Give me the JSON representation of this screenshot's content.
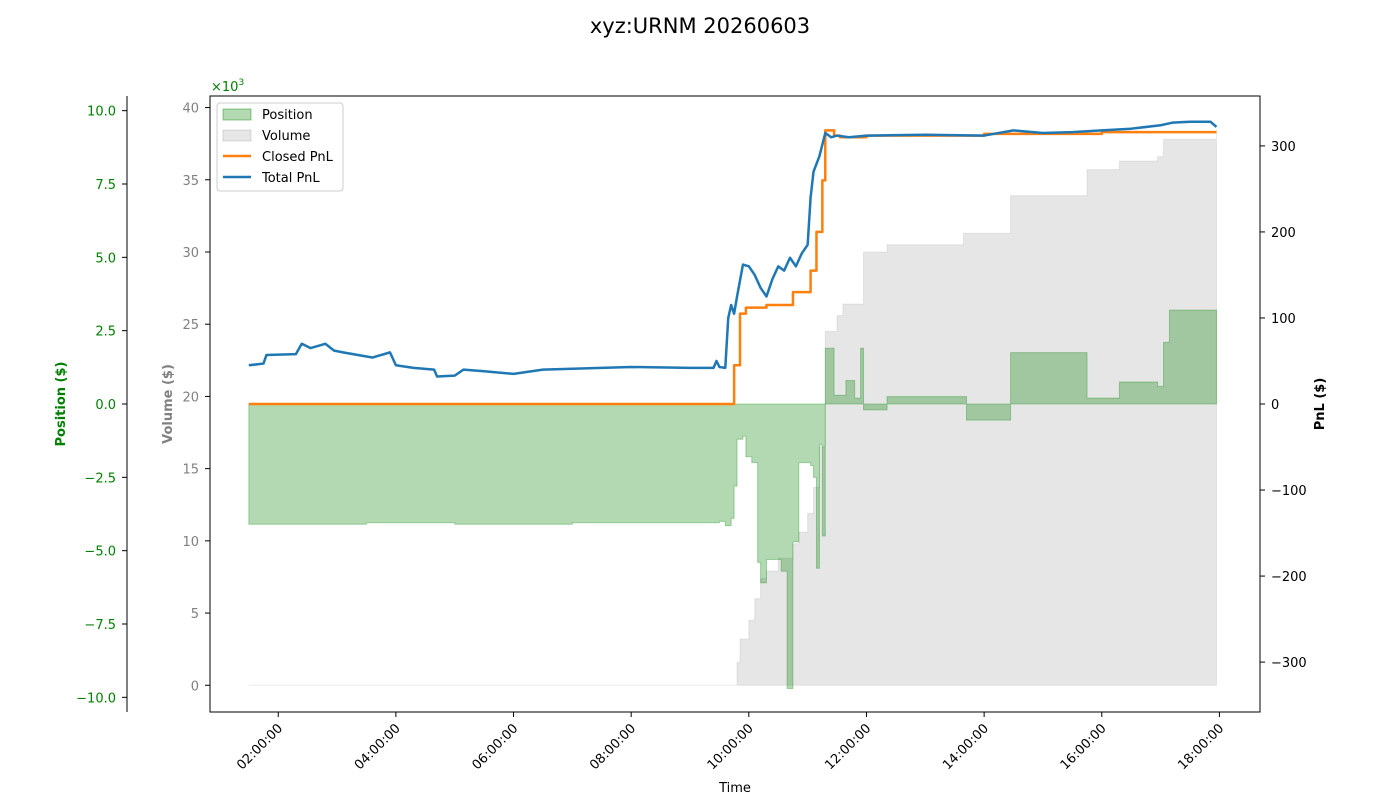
{
  "colors": {
    "position": "#008000",
    "volume": "#808080",
    "closed_pnl": "#ff7f0e",
    "total_pnl": "#1f77b4"
  },
  "chart_data": {
    "type": "line",
    "title": "xyz:URNM 20260603",
    "xlabel": "Time",
    "x_ticks": [
      "02:00:00",
      "04:00:00",
      "06:00:00",
      "08:00:00",
      "10:00:00",
      "12:00:00",
      "14:00:00",
      "16:00:00",
      "18:00:00"
    ],
    "x_range_hours": [
      1.5,
      17.95
    ],
    "axes": {
      "position": {
        "label": "Position ($)",
        "ylim": [
          -10.5,
          10.5
        ],
        "ticks": [
          "10.0",
          "7.5",
          "5.0",
          "2.5",
          "0.0",
          "−2.5",
          "−5.0",
          "−7.5",
          "−10.0"
        ],
        "tick_values": [
          10,
          7.5,
          5,
          2.5,
          0,
          -2.5,
          -5,
          -7.5,
          -10
        ],
        "offset_label": "×10",
        "offset_exp": "3"
      },
      "volume": {
        "label": "Volume ($)",
        "ylim": [
          -1.85,
          40.8
        ],
        "ticks": [
          "40",
          "35",
          "30",
          "25",
          "20",
          "15",
          "10",
          "5",
          "0"
        ],
        "tick_values": [
          40,
          35,
          30,
          25,
          20,
          15,
          10,
          5,
          0
        ],
        "unit": "x10^3"
      },
      "pnl": {
        "label": "PnL ($)",
        "ylim": [
          -358,
          358
        ],
        "ticks": [
          "300",
          "200",
          "100",
          "0",
          "−100",
          "−200",
          "−300"
        ],
        "tick_values": [
          300,
          200,
          100,
          0,
          -100,
          -200,
          -300
        ]
      }
    },
    "legend": {
      "placement": "upper-left",
      "entries": [
        "Position",
        "Volume",
        "Closed PnL",
        "Total PnL"
      ]
    },
    "series": [
      {
        "name": "Position",
        "axis": "position",
        "kind": "step-area",
        "points": [
          [
            1.5,
            -4.1
          ],
          [
            3.5,
            -4.05
          ],
          [
            5.0,
            -4.1
          ],
          [
            7.0,
            -4.05
          ],
          [
            9.5,
            -4.0
          ],
          [
            9.6,
            -4.15
          ],
          [
            9.7,
            -3.9
          ],
          [
            9.75,
            -2.8
          ],
          [
            9.8,
            -1.2
          ],
          [
            9.9,
            -1.1
          ],
          [
            9.95,
            -1.8
          ],
          [
            10.05,
            -2.0
          ],
          [
            10.15,
            -5.4
          ],
          [
            10.2,
            -6.1
          ],
          [
            10.3,
            -5.3
          ],
          [
            10.55,
            -5.7
          ],
          [
            10.65,
            -9.7
          ],
          [
            10.75,
            -4.7
          ],
          [
            10.85,
            -2.0
          ],
          [
            11.05,
            -2.1
          ],
          [
            11.1,
            -2.5
          ],
          [
            11.15,
            -5.6
          ],
          [
            11.2,
            -1.4
          ],
          [
            11.25,
            -4.5
          ],
          [
            11.3,
            1.9
          ],
          [
            11.45,
            0.3
          ],
          [
            11.55,
            0.3
          ],
          [
            11.65,
            0.8
          ],
          [
            11.8,
            0.2
          ],
          [
            11.9,
            1.9
          ],
          [
            11.95,
            -0.2
          ],
          [
            12.35,
            0.25
          ],
          [
            13.7,
            -0.55
          ],
          [
            14.45,
            1.75
          ],
          [
            15.75,
            0.2
          ],
          [
            16.3,
            0.75
          ],
          [
            16.95,
            0.6
          ],
          [
            17.05,
            2.1
          ],
          [
            17.15,
            3.2
          ],
          [
            17.95,
            3.2
          ]
        ]
      },
      {
        "name": "Volume",
        "axis": "volume",
        "kind": "step-area",
        "points": [
          [
            1.5,
            0
          ],
          [
            9.7,
            0
          ],
          [
            9.8,
            1.6
          ],
          [
            9.85,
            3.2
          ],
          [
            10.0,
            4.5
          ],
          [
            10.1,
            6.0
          ],
          [
            10.2,
            7.4
          ],
          [
            10.3,
            7.9
          ],
          [
            10.5,
            8.8
          ],
          [
            10.75,
            9.8
          ],
          [
            10.85,
            10.6
          ],
          [
            11.0,
            11.9
          ],
          [
            11.1,
            13.7
          ],
          [
            11.2,
            16.5
          ],
          [
            11.3,
            24.5
          ],
          [
            11.5,
            25.6
          ],
          [
            11.6,
            26.4
          ],
          [
            11.95,
            30.0
          ],
          [
            12.35,
            30.5
          ],
          [
            13.65,
            31.3
          ],
          [
            14.45,
            33.9
          ],
          [
            15.75,
            35.7
          ],
          [
            16.3,
            36.3
          ],
          [
            16.95,
            36.6
          ],
          [
            17.05,
            37.8
          ],
          [
            17.95,
            38.5
          ]
        ]
      },
      {
        "name": "Closed PnL",
        "axis": "pnl",
        "kind": "step-line",
        "points": [
          [
            1.5,
            0
          ],
          [
            9.7,
            0
          ],
          [
            9.75,
            45
          ],
          [
            9.85,
            105
          ],
          [
            9.95,
            112
          ],
          [
            10.3,
            115
          ],
          [
            10.75,
            130
          ],
          [
            11.05,
            155
          ],
          [
            11.15,
            200
          ],
          [
            11.25,
            260
          ],
          [
            11.3,
            318
          ],
          [
            11.45,
            312
          ],
          [
            11.55,
            310
          ],
          [
            12.0,
            312
          ],
          [
            14.0,
            314
          ],
          [
            16.0,
            316
          ],
          [
            17.95,
            316
          ]
        ]
      },
      {
        "name": "Total PnL",
        "axis": "pnl",
        "kind": "line",
        "points": [
          [
            1.5,
            45
          ],
          [
            1.75,
            47
          ],
          [
            1.8,
            57
          ],
          [
            2.3,
            58
          ],
          [
            2.4,
            70
          ],
          [
            2.55,
            65
          ],
          [
            2.8,
            70
          ],
          [
            2.95,
            62
          ],
          [
            3.1,
            60
          ],
          [
            3.6,
            54
          ],
          [
            3.9,
            60
          ],
          [
            4.0,
            45
          ],
          [
            4.3,
            42
          ],
          [
            4.65,
            40
          ],
          [
            4.7,
            32
          ],
          [
            5.0,
            33
          ],
          [
            5.15,
            40
          ],
          [
            5.5,
            38
          ],
          [
            6.0,
            35
          ],
          [
            6.5,
            40
          ],
          [
            7.0,
            41
          ],
          [
            8.0,
            43
          ],
          [
            9.0,
            42
          ],
          [
            9.4,
            42
          ],
          [
            9.45,
            50
          ],
          [
            9.5,
            43
          ],
          [
            9.6,
            42
          ],
          [
            9.65,
            100
          ],
          [
            9.7,
            115
          ],
          [
            9.75,
            105
          ],
          [
            9.8,
            125
          ],
          [
            9.9,
            162
          ],
          [
            10.0,
            160
          ],
          [
            10.1,
            150
          ],
          [
            10.2,
            135
          ],
          [
            10.3,
            125
          ],
          [
            10.4,
            145
          ],
          [
            10.5,
            160
          ],
          [
            10.6,
            155
          ],
          [
            10.7,
            170
          ],
          [
            10.8,
            160
          ],
          [
            10.9,
            175
          ],
          [
            11.0,
            185
          ],
          [
            11.05,
            240
          ],
          [
            11.1,
            270
          ],
          [
            11.2,
            288
          ],
          [
            11.3,
            315
          ],
          [
            11.4,
            310
          ],
          [
            11.5,
            312
          ],
          [
            11.7,
            310
          ],
          [
            12.0,
            312
          ],
          [
            13.0,
            313
          ],
          [
            14.0,
            312
          ],
          [
            14.5,
            318
          ],
          [
            15.0,
            315
          ],
          [
            15.5,
            316
          ],
          [
            16.0,
            318
          ],
          [
            16.5,
            320
          ],
          [
            17.0,
            324
          ],
          [
            17.2,
            327
          ],
          [
            17.5,
            328
          ],
          [
            17.85,
            328
          ],
          [
            17.95,
            322
          ]
        ]
      }
    ]
  }
}
